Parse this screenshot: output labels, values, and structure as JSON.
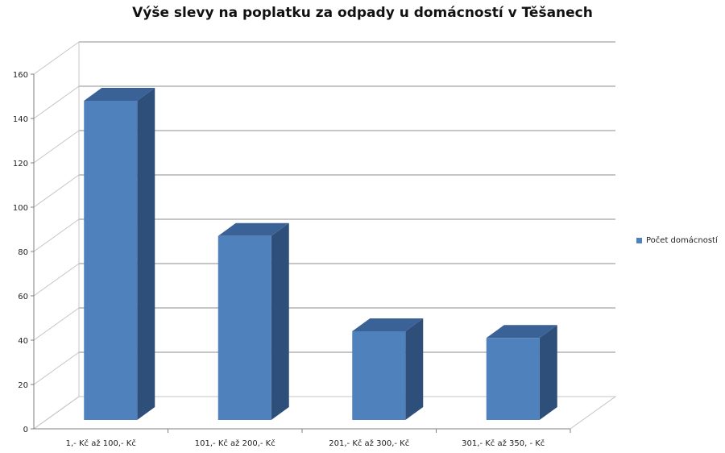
{
  "chart_data": {
    "type": "bar",
    "title": "Výše slevy na poplatku za odpady u domácností v Těšanech",
    "categories": [
      "1,- Kč až 100,- Kč",
      "101,- Kč až 200,- Kč",
      "201,- Kč až 300,- Kč",
      "301,- Kč až 350, - Kč"
    ],
    "series": [
      {
        "name": "Počet domácností",
        "values": [
          144,
          83,
          40,
          37
        ]
      }
    ],
    "ylim": [
      0,
      160
    ],
    "yticks": [
      0,
      20,
      40,
      60,
      80,
      100,
      120,
      140,
      160
    ],
    "grid": true,
    "legend_position": "right",
    "bar_color": "#4f81bd",
    "bar_side_color": "#2e4f7a",
    "bar_top_color": "#3a6296"
  }
}
